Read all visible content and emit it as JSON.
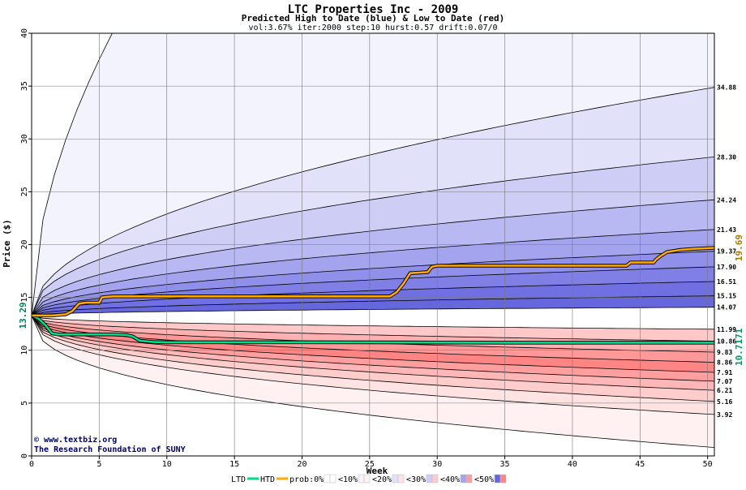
{
  "chart_data": {
    "type": "area",
    "title": "LTC Properties Inc - 2009",
    "subtitle": "Predicted High to Date (blue) &  Low to Date (red)",
    "params": "vol:3.67% iter:2000 step:10 hurst:0.57 drift:0.07/0",
    "xlabel": "Week",
    "ylabel": "Price ($)",
    "xlim": [
      0,
      50.5
    ],
    "ylim": [
      0,
      40
    ],
    "x_ticks": [
      0,
      5,
      10,
      15,
      20,
      25,
      30,
      35,
      40,
      45,
      50
    ],
    "y_ticks": [
      0,
      5,
      10,
      15,
      20,
      25,
      30,
      35,
      40
    ],
    "grid": true,
    "start_price": 13.29,
    "start_price_label": "13.29",
    "upper_band_end_values": [
      "34.88",
      "28.30",
      "24.24",
      "21.43",
      "19.37",
      "17.90",
      "16.51",
      "15.15",
      "14.07"
    ],
    "lower_band_end_values": [
      "11.99",
      "10.86",
      "9.83",
      "8.86",
      "7.91",
      "7.07",
      "6.21",
      "5.16",
      "3.92"
    ],
    "upper_band_colors": [
      "#f3f3fd",
      "#e1e1fa",
      "#cdcdf6",
      "#b8b8f2",
      "#a3a3ee",
      "#9090ea",
      "#7f7fe6",
      "#7070e2",
      "#6666dd"
    ],
    "lower_band_colors": [
      "#ffc8c8",
      "#ffb1b1",
      "#ff9999",
      "#ff8484",
      "#ff9e9e",
      "#ffb6b6",
      "#ffcccc",
      "#ffe2e2",
      "#fff1f1"
    ],
    "series": [
      {
        "name": "LTD",
        "color": "#00dd88",
        "x": [
          0,
          0.5,
          1,
          1.5,
          2,
          3,
          4,
          5,
          6,
          7,
          7.5,
          8,
          8.5,
          9,
          10,
          12,
          15,
          20,
          25,
          30,
          35,
          40,
          45,
          50.5
        ],
        "values": [
          13.29,
          13.0,
          12.4,
          11.6,
          11.5,
          11.5,
          11.5,
          11.5,
          11.5,
          11.45,
          11.3,
          10.9,
          10.85,
          10.78,
          10.76,
          10.76,
          10.76,
          10.76,
          10.75,
          10.73,
          10.72,
          10.72,
          10.72,
          10.717
        ]
      },
      {
        "name": "HTD",
        "color": "#ffaa00",
        "x": [
          0,
          1,
          1.5,
          2.5,
          3,
          3.5,
          4,
          5,
          5.2,
          6,
          10,
          15,
          20,
          26.5,
          27,
          27.5,
          28,
          29.3,
          29.6,
          30,
          35,
          40,
          44,
          44.3,
          46,
          46.2,
          46.5,
          47,
          48,
          49,
          50.5
        ],
        "values": [
          13.29,
          13.29,
          13.29,
          13.4,
          13.7,
          14.4,
          14.5,
          14.5,
          15.0,
          15.1,
          15.1,
          15.1,
          15.1,
          15.1,
          15.5,
          16.3,
          17.3,
          17.4,
          17.9,
          18.0,
          18.0,
          18.0,
          18.0,
          18.3,
          18.3,
          18.6,
          18.9,
          19.3,
          19.5,
          19.6,
          19.69
        ]
      }
    ],
    "htd_end_label": "19.69",
    "ltd_end_label": "10.7171",
    "legend": {
      "position": "bottom",
      "entries": [
        {
          "label": "LTD",
          "kind": "line",
          "color": "#00dd88"
        },
        {
          "label": "HTD",
          "kind": "line",
          "color": "#ffaa00"
        },
        {
          "label": "prob:0%",
          "kind": "swatch",
          "colors": [
            "#ffffff",
            "#ffffff"
          ]
        },
        {
          "label": "<10%",
          "kind": "swatch",
          "colors": [
            "#f3f3fd",
            "#fff1f1"
          ]
        },
        {
          "label": "<20%",
          "kind": "swatch",
          "colors": [
            "#e1e1fa",
            "#ffe2e2"
          ]
        },
        {
          "label": "<30%",
          "kind": "swatch",
          "colors": [
            "#cdcdf6",
            "#ffcccc"
          ]
        },
        {
          "label": "<40%",
          "kind": "swatch",
          "colors": [
            "#a3a3ee",
            "#ff9e9e"
          ]
        },
        {
          "label": "<50%",
          "kind": "swatch",
          "colors": [
            "#6666dd",
            "#ff8484"
          ]
        }
      ]
    },
    "footer_lines": [
      "www.textbiz.org",
      "The Research Foundation of SUNY"
    ],
    "copyright_symbol": "©"
  }
}
